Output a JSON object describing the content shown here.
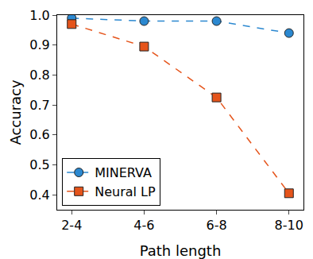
{
  "chart_data": {
    "type": "line",
    "x_label": "Path length",
    "y_label": "Accuracy",
    "categories": [
      "2-4",
      "4-6",
      "6-8",
      "8-10"
    ],
    "series": [
      {
        "name": "MINERVA",
        "color": "#2b88d0",
        "marker": "circle",
        "line_style": "dashed",
        "values": [
          0.99,
          0.98,
          0.98,
          0.94
        ]
      },
      {
        "name": "Neural LP",
        "color": "#e5541b",
        "marker": "square",
        "line_style": "dashed",
        "values": [
          0.97,
          0.895,
          0.725,
          0.405
        ]
      }
    ],
    "ylim": [
      0.35,
      1.0
    ],
    "yticks": [
      0.4,
      0.5,
      0.6,
      0.7,
      0.8,
      0.9,
      {
        "value": 1,
        "label": "1.0"
      }
    ],
    "grid": false,
    "legend": "lower left"
  }
}
